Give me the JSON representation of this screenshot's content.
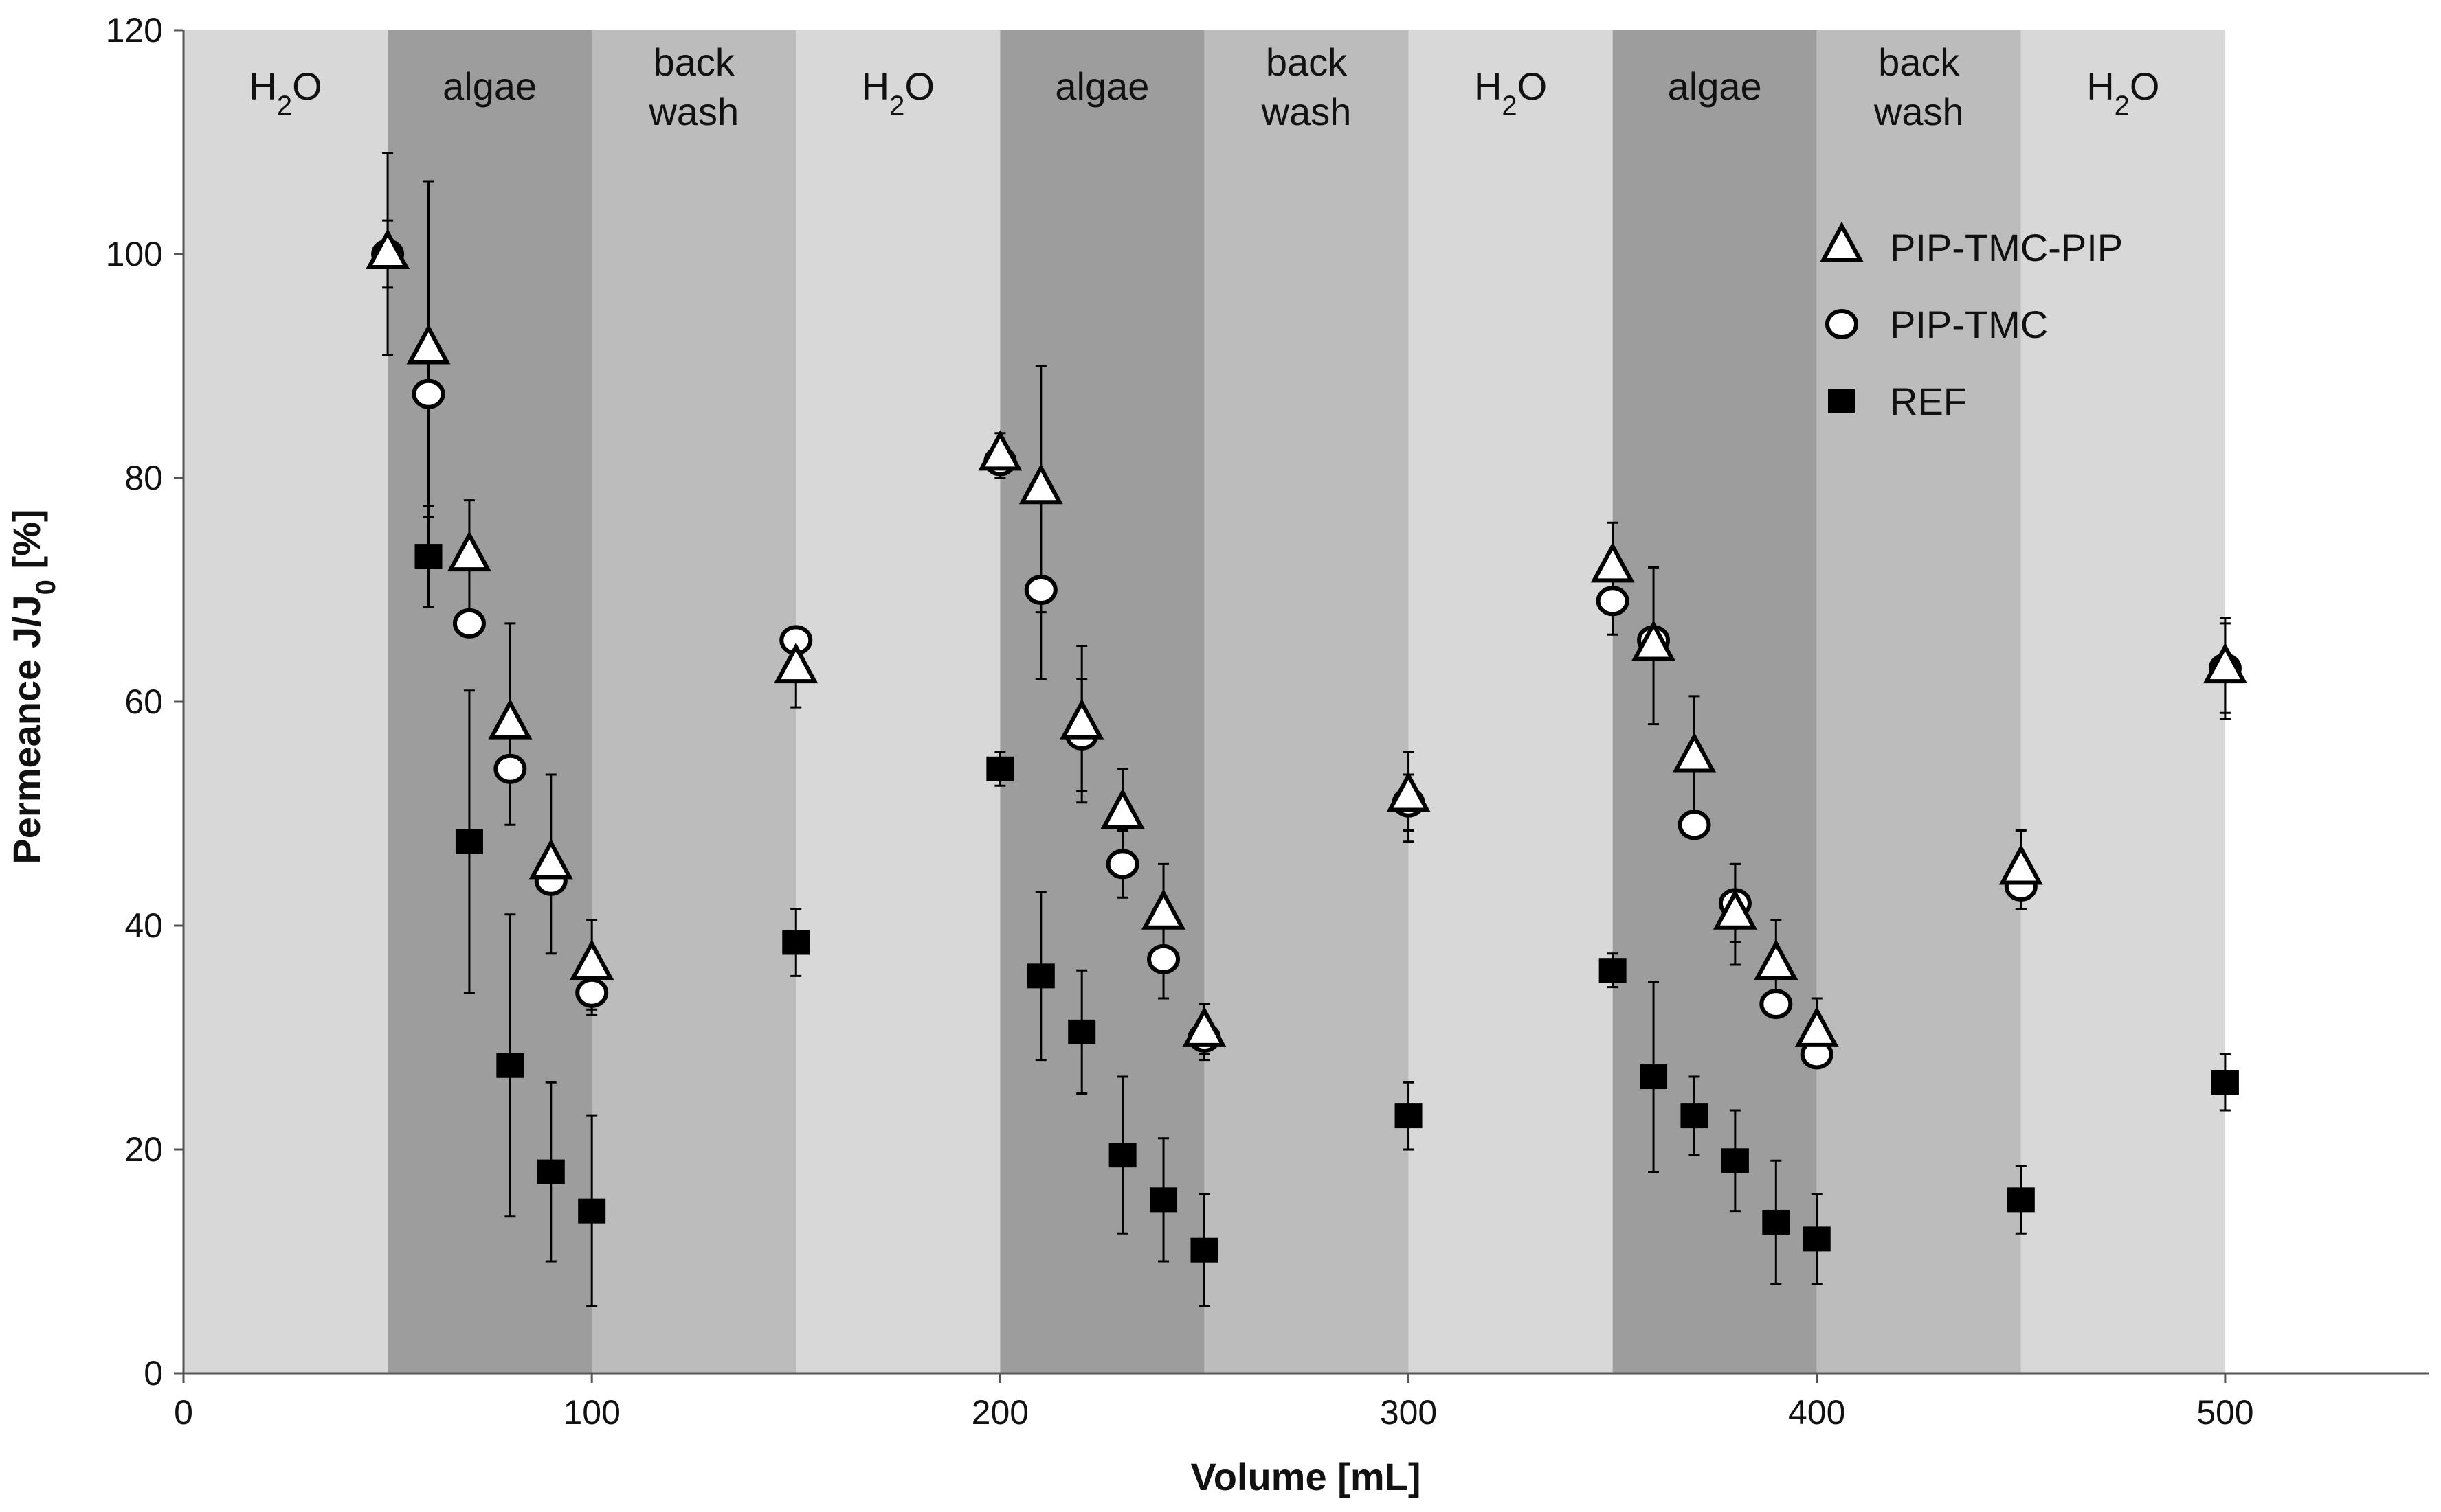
{
  "chart_data": {
    "type": "scatter",
    "title": "",
    "xlabel": "Volume [mL]",
    "ylabel": {
      "prefix": "Permeance J/J",
      "subscript": "0",
      "suffix": " [%]"
    },
    "xlim": [
      0,
      550
    ],
    "ylim": [
      0,
      120
    ],
    "xticks": [
      0,
      100,
      200,
      300,
      400,
      500
    ],
    "yticks": [
      0,
      20,
      40,
      60,
      80,
      100,
      120
    ],
    "grid": false,
    "legend_position": "top-right",
    "colors": {
      "h2o": "#d8d8d8",
      "algae": "#9d9d9d",
      "backwash": "#bcbcbc",
      "marker_edge": "#000000",
      "marker_fill": "#ffffff"
    },
    "phases": [
      {
        "type": "h2o",
        "label": "H2O",
        "label_main": "H",
        "label_sub": "2",
        "label_end": "O",
        "x_start": 0,
        "x_end": 50
      },
      {
        "type": "algae",
        "label": "algae",
        "x_start": 50,
        "x_end": 100
      },
      {
        "type": "backwash",
        "label": "back wash",
        "label_lines": [
          "back",
          "wash"
        ],
        "x_start": 100,
        "x_end": 150
      },
      {
        "type": "h2o",
        "label": "H2O",
        "label_main": "H",
        "label_sub": "2",
        "label_end": "O",
        "x_start": 150,
        "x_end": 200
      },
      {
        "type": "algae",
        "label": "algae",
        "x_start": 200,
        "x_end": 250
      },
      {
        "type": "backwash",
        "label": "back wash",
        "label_lines": [
          "back",
          "wash"
        ],
        "x_start": 250,
        "x_end": 300
      },
      {
        "type": "h2o",
        "label": "H2O",
        "label_main": "H",
        "label_sub": "2",
        "label_end": "O",
        "x_start": 300,
        "x_end": 350
      },
      {
        "type": "algae",
        "label": "algae",
        "x_start": 350,
        "x_end": 400
      },
      {
        "type": "backwash",
        "label": "back wash",
        "label_lines": [
          "back",
          "wash"
        ],
        "x_start": 400,
        "x_end": 450
      },
      {
        "type": "h2o",
        "label": "H2O",
        "label_main": "H",
        "label_sub": "2",
        "label_end": "O",
        "x_start": 450,
        "x_end": 500
      }
    ],
    "series": [
      {
        "name": "PIP-TMC-PIP",
        "marker": "triangle",
        "x": [
          50,
          60,
          70,
          80,
          90,
          100,
          150,
          200,
          210,
          220,
          230,
          240,
          250,
          300,
          350,
          360,
          370,
          380,
          390,
          400,
          450,
          500
        ],
        "y": [
          100,
          91.5,
          73,
          58,
          45.5,
          36.5,
          63,
          82,
          79,
          58,
          50,
          41,
          30.5,
          51.5,
          72,
          65,
          55,
          41,
          36.5,
          30.5,
          45,
          63
        ],
        "err": [
          9,
          15,
          5,
          9,
          8,
          4,
          3.5,
          2,
          11,
          7,
          4,
          4.5,
          2.5,
          4,
          4,
          7,
          5.5,
          4.5,
          4,
          3,
          3.5,
          4.5
        ]
      },
      {
        "name": "PIP-TMC",
        "marker": "circle",
        "x": [
          50,
          60,
          70,
          80,
          90,
          100,
          150,
          200,
          210,
          220,
          230,
          240,
          250,
          300,
          350,
          360,
          370,
          380,
          390,
          400,
          450,
          500
        ],
        "y": [
          100,
          87.5,
          67,
          54,
          44,
          34,
          65.5,
          81.5,
          70,
          57,
          45.5,
          37,
          30,
          51,
          69,
          65.5,
          49,
          42,
          33,
          28.5,
          43.5,
          63
        ],
        "err": [
          3,
          0,
          0,
          0,
          0,
          2,
          0,
          1,
          8,
          5,
          3,
          3.5,
          1.5,
          2.5,
          3,
          0,
          0,
          3.5,
          0,
          0,
          2,
          4
        ]
      },
      {
        "name": "REF",
        "marker": "square",
        "x": [
          60,
          70,
          80,
          90,
          100,
          150,
          200,
          210,
          220,
          230,
          240,
          250,
          300,
          350,
          360,
          370,
          380,
          390,
          400,
          450,
          500
        ],
        "y": [
          73,
          47.5,
          27.5,
          18,
          14.5,
          38.5,
          54,
          35.5,
          30.5,
          19.5,
          15.5,
          11,
          23,
          36,
          26.5,
          23,
          19,
          13.5,
          12,
          15.5,
          26
        ],
        "err": [
          4.5,
          13.5,
          13.5,
          8,
          8.5,
          3,
          1.5,
          7.5,
          5.5,
          7,
          5.5,
          5,
          3,
          1.5,
          8.5,
          3.5,
          4.5,
          5.5,
          4,
          3,
          2.5
        ]
      }
    ]
  }
}
